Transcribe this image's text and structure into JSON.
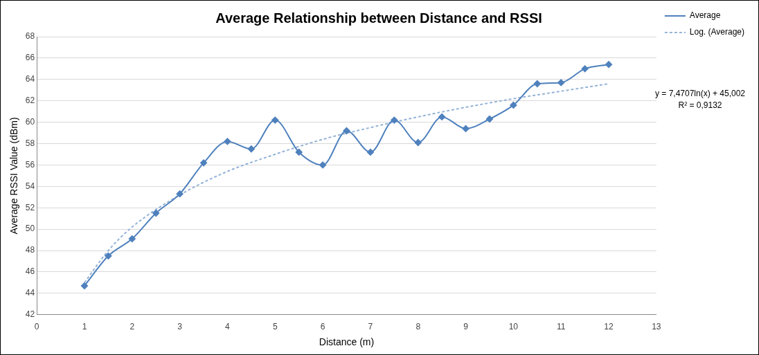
{
  "chart_data": {
    "type": "line",
    "title": "Average Relationship between Distance and RSSI",
    "xlabel": "Distance (m)",
    "ylabel": "Average RSSI Value (dBm)",
    "xlim": [
      0,
      13
    ],
    "xticks": [
      0,
      1,
      2,
      3,
      4,
      5,
      6,
      7,
      8,
      9,
      10,
      11,
      12,
      13
    ],
    "ylim": [
      42,
      68
    ],
    "yticks": [
      42,
      44,
      46,
      48,
      50,
      52,
      54,
      56,
      58,
      60,
      62,
      64,
      66,
      68
    ],
    "grid": "y",
    "legend": "right",
    "series": [
      {
        "name": "Average",
        "color": "#4f81bd",
        "marker": "diamond",
        "line_style": "solid",
        "x": [
          1,
          1.5,
          2,
          2.5,
          3,
          3.5,
          4,
          4.5,
          5,
          5.5,
          6,
          6.5,
          7,
          7.5,
          8,
          8.5,
          9,
          9.5,
          10,
          10.5,
          11,
          11.5,
          12
        ],
        "values": [
          44.7,
          47.5,
          49.1,
          51.5,
          53.3,
          56.2,
          58.2,
          57.5,
          60.2,
          57.2,
          56.0,
          59.2,
          57.2,
          60.2,
          58.1,
          60.5,
          59.4,
          60.3,
          61.6,
          63.6,
          63.7,
          65.0,
          65.4
        ]
      },
      {
        "name": "Log. (Average)",
        "color": "#95b3d7",
        "marker": "none",
        "line_style": "dashed",
        "x": [
          1,
          1.5,
          2,
          3,
          4,
          5,
          6,
          7,
          8,
          9,
          10,
          11,
          12
        ],
        "values": [
          45.0,
          48.0,
          50.2,
          53.2,
          55.4,
          57.0,
          58.4,
          59.5,
          60.5,
          61.4,
          62.2,
          62.9,
          63.6
        ]
      }
    ],
    "annotations": [
      "y = 7,4707ln(x) + 45,002",
      "R² = 0,9132"
    ]
  }
}
